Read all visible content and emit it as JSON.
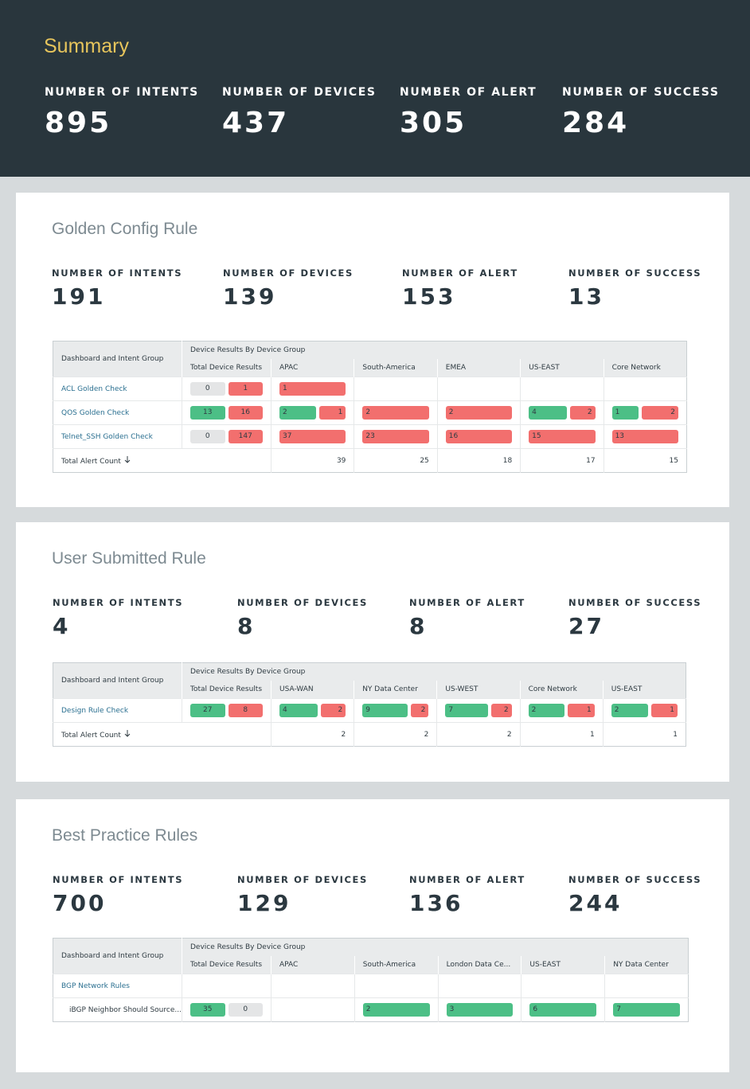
{
  "summary": {
    "title": "Summary",
    "stats": [
      {
        "label": "NUMBER OF INTENTS",
        "value": "895"
      },
      {
        "label": "NUMBER OF DEVICES",
        "value": "437"
      },
      {
        "label": "NUMBER OF ALERT",
        "value": "305"
      },
      {
        "label": "NUMBER OF SUCCESS",
        "value": "284"
      }
    ]
  },
  "sections": [
    {
      "title": "Golden Config Rule",
      "stats": [
        {
          "label": "NUMBER OF INTENTS",
          "value": "191"
        },
        {
          "label": "NUMBER OF DEVICES",
          "value": "139"
        },
        {
          "label": "NUMBER OF ALERT",
          "value": "153"
        },
        {
          "label": "NUMBER OF SUCCESS",
          "value": "13"
        }
      ],
      "table": {
        "group_header": "Dashboard and Intent Group",
        "results_header": "Device Results By Device Group",
        "columns": [
          "Total Device Results",
          "APAC",
          "South-America",
          "EMEA",
          "US-EAST",
          "Core Network"
        ],
        "rows": [
          {
            "name": "ACL Golden Check",
            "total": {
              "success": 0,
              "alert": 1
            },
            "cells": [
              {
                "success": null,
                "alert": 1
              },
              null,
              null,
              null,
              null
            ]
          },
          {
            "name": "QOS Golden Check",
            "total": {
              "success": 13,
              "alert": 16
            },
            "cells": [
              {
                "success": 2,
                "alert": 1
              },
              {
                "success": null,
                "alert": 2
              },
              {
                "success": null,
                "alert": 2
              },
              {
                "success": 4,
                "alert": 2
              },
              {
                "success": 1,
                "alert": 2
              }
            ]
          },
          {
            "name": "Telnet_SSH Golden Check",
            "total": {
              "success": 0,
              "alert": 147
            },
            "cells": [
              {
                "success": null,
                "alert": 37
              },
              {
                "success": null,
                "alert": 23
              },
              {
                "success": null,
                "alert": 16
              },
              {
                "success": null,
                "alert": 15
              },
              {
                "success": null,
                "alert": 13
              }
            ]
          }
        ],
        "total_label": "Total Alert Count",
        "totals": [
          39,
          25,
          18,
          17,
          15
        ]
      }
    },
    {
      "title": "User Submitted Rule",
      "stats": [
        {
          "label": "NUMBER OF INTENTS",
          "value": "4"
        },
        {
          "label": "NUMBER OF DEVICES",
          "value": "8"
        },
        {
          "label": "NUMBER OF ALERT",
          "value": "8"
        },
        {
          "label": "NUMBER OF SUCCESS",
          "value": "27"
        }
      ],
      "table": {
        "group_header": "Dashboard and Intent Group",
        "results_header": "Device Results By Device Group",
        "columns": [
          "Total Device Results",
          "USA-WAN",
          "NY Data Center",
          "US-WEST",
          "Core Network",
          "US-EAST"
        ],
        "rows": [
          {
            "name": "Design Rule Check",
            "total": {
              "success": 27,
              "alert": 8
            },
            "cells": [
              {
                "success": 4,
                "alert": 2
              },
              {
                "success": 9,
                "alert": 2
              },
              {
                "success": 7,
                "alert": 2
              },
              {
                "success": 2,
                "alert": 1
              },
              {
                "success": 2,
                "alert": 1
              }
            ]
          }
        ],
        "total_label": "Total Alert Count",
        "totals": [
          2,
          2,
          2,
          1,
          1
        ]
      }
    },
    {
      "title": "Best Practice Rules",
      "stats": [
        {
          "label": "NUMBER OF INTENTS",
          "value": "700"
        },
        {
          "label": "NUMBER OF DEVICES",
          "value": "129"
        },
        {
          "label": "NUMBER OF ALERT",
          "value": "136"
        },
        {
          "label": "NUMBER OF SUCCESS",
          "value": "244"
        }
      ],
      "table": {
        "group_header": "Dashboard and Intent Group",
        "results_header": "Device Results By Device Group",
        "columns": [
          "Total Device Results",
          "APAC",
          "South-America",
          "London Data Ce...",
          "US-EAST",
          "NY Data Center"
        ],
        "rows": [
          {
            "name": "BGP Network Rules",
            "children": [
              {
                "name": "iBGP Neighbor Should Source...",
                "total": {
                  "success": 35,
                  "alert": 0
                },
                "cells": [
                  null,
                  {
                    "success": 2,
                    "alert": null
                  },
                  {
                    "success": 3,
                    "alert": null
                  },
                  {
                    "success": 6,
                    "alert": null
                  },
                  {
                    "success": 7,
                    "alert": null
                  }
                ]
              }
            ]
          }
        ]
      }
    }
  ]
}
